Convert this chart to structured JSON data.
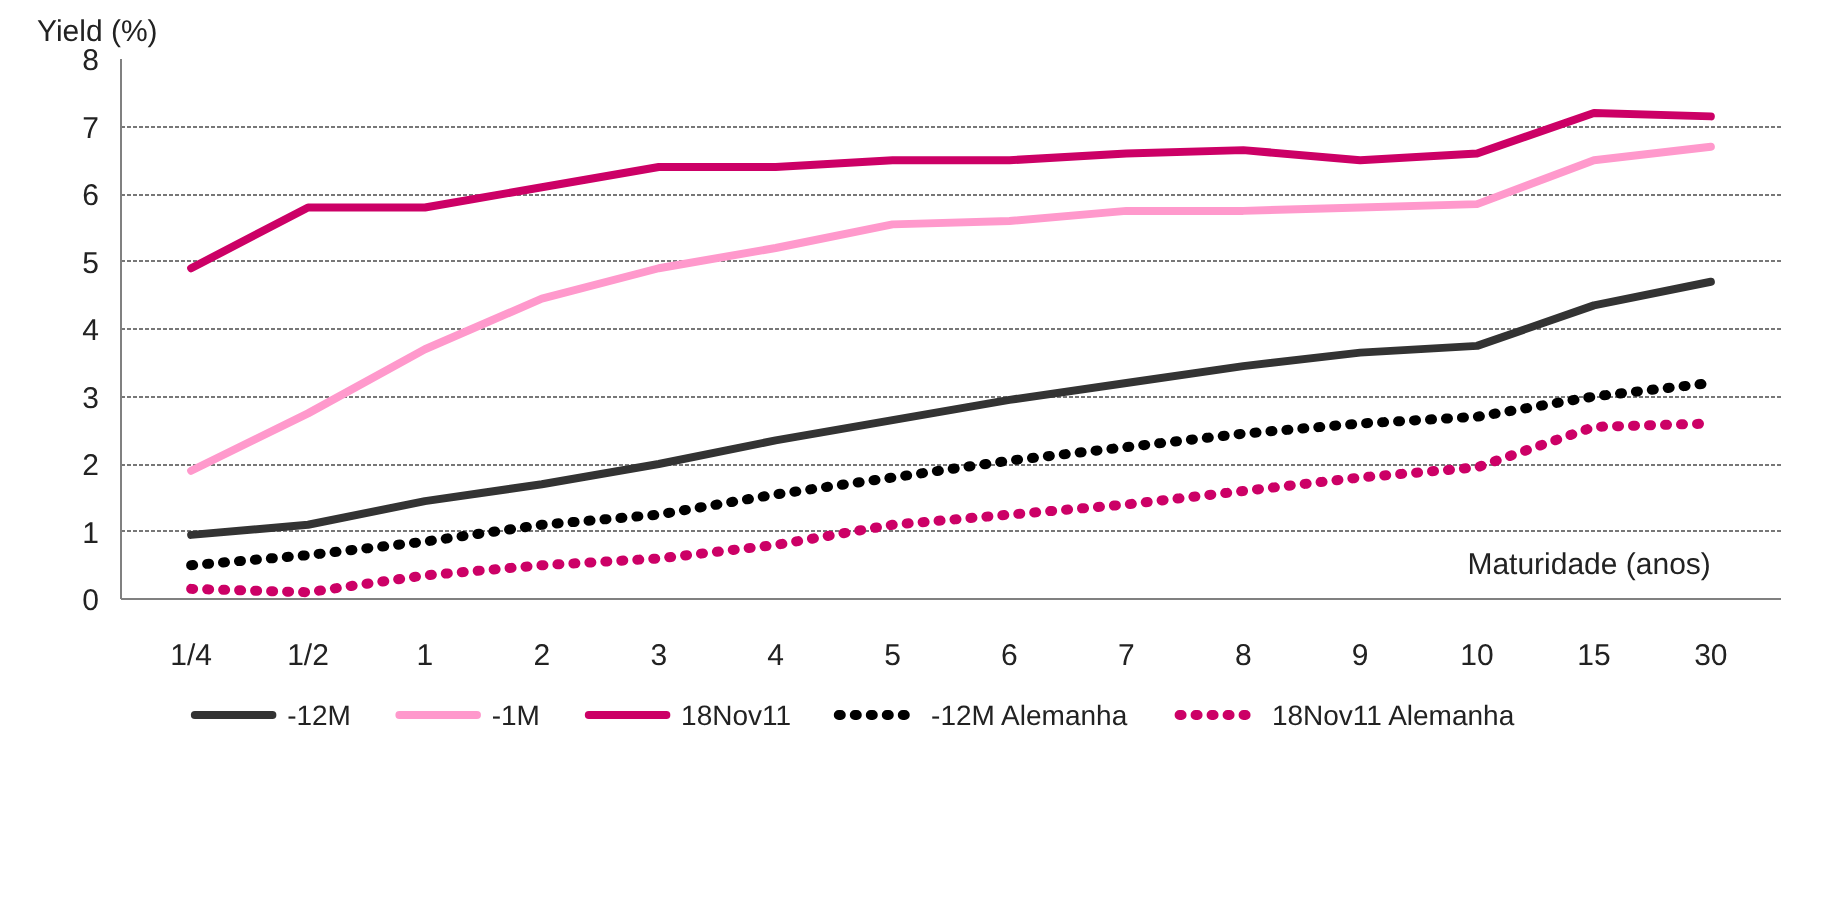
{
  "chart_data": {
    "type": "line",
    "ylabel": "Yield (%)",
    "xlabel": "Maturidade (anos)",
    "categories": [
      "1/4",
      "1/2",
      "1",
      "2",
      "3",
      "4",
      "5",
      "6",
      "7",
      "8",
      "9",
      "10",
      "15",
      "30"
    ],
    "series": [
      {
        "name": "-12M",
        "color": "#333333",
        "line_style": "solid",
        "values": [
          0.95,
          1.1,
          1.45,
          1.7,
          2.0,
          2.35,
          2.65,
          2.95,
          3.2,
          3.45,
          3.65,
          3.75,
          4.35,
          4.7
        ]
      },
      {
        "name": "-1M",
        "color": "#ff99cc",
        "line_style": "solid",
        "values": [
          1.9,
          2.75,
          3.7,
          4.45,
          4.9,
          5.2,
          5.55,
          5.6,
          5.75,
          5.75,
          5.8,
          5.85,
          6.5,
          6.7
        ]
      },
      {
        "name": "18Nov11",
        "color": "#cc0066",
        "line_style": "solid",
        "values": [
          4.9,
          5.8,
          5.8,
          6.1,
          6.4,
          6.4,
          6.5,
          6.5,
          6.6,
          6.65,
          6.5,
          6.6,
          7.2,
          7.15
        ]
      },
      {
        "name": "-12M Alemanha",
        "color": "#000000",
        "line_style": "dotted",
        "values": [
          0.5,
          0.65,
          0.85,
          1.1,
          1.25,
          1.55,
          1.8,
          2.05,
          2.25,
          2.45,
          2.6,
          2.7,
          3.0,
          3.2
        ]
      },
      {
        "name": "18Nov11 Alemanha",
        "color": "#cc0066",
        "line_style": "dotted",
        "values": [
          0.15,
          0.1,
          0.35,
          0.5,
          0.6,
          0.8,
          1.1,
          1.25,
          1.4,
          1.6,
          1.8,
          1.95,
          2.55,
          2.6
        ]
      }
    ],
    "ylim": [
      0,
      8
    ],
    "yticks": [
      0,
      1,
      2,
      3,
      4,
      5,
      6,
      7,
      8
    ],
    "grid": "y",
    "legend": "bottom",
    "marker": "none"
  }
}
